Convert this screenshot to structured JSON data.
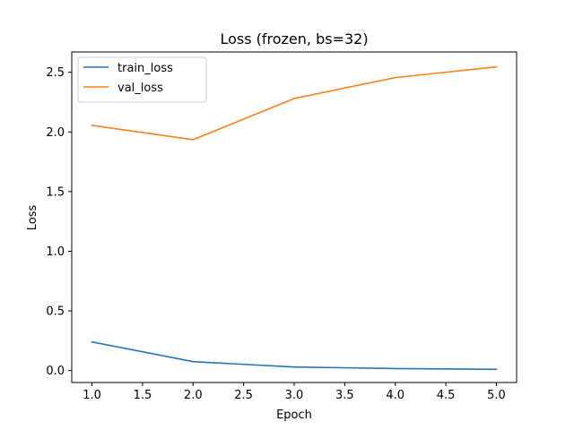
{
  "chart_data": {
    "type": "line",
    "title": "Loss (frozen, bs=32)",
    "xlabel": "Epoch",
    "ylabel": "Loss",
    "x": [
      1.0,
      2.0,
      3.0,
      4.0,
      5.0
    ],
    "xlim": [
      0.8,
      5.2
    ],
    "ylim": [
      -0.1,
      2.67
    ],
    "xticks": [
      1.0,
      1.5,
      2.0,
      2.5,
      3.0,
      3.5,
      4.0,
      4.5,
      5.0
    ],
    "xtick_labels": [
      "1.0",
      "1.5",
      "2.0",
      "2.5",
      "3.0",
      "3.5",
      "4.0",
      "4.5",
      "5.0"
    ],
    "yticks": [
      0.0,
      0.5,
      1.0,
      1.5,
      2.0,
      2.5
    ],
    "ytick_labels": [
      "0.0",
      "0.5",
      "1.0",
      "1.5",
      "2.0",
      "2.5"
    ],
    "grid": false,
    "legend_position": "top-left",
    "series": [
      {
        "name": "train_loss",
        "color": "#1f77b4",
        "values": [
          0.24,
          0.075,
          0.03,
          0.017,
          0.01
        ]
      },
      {
        "name": "val_loss",
        "color": "#ff7f0e",
        "values": [
          2.055,
          1.935,
          2.28,
          2.455,
          2.545
        ]
      }
    ]
  }
}
